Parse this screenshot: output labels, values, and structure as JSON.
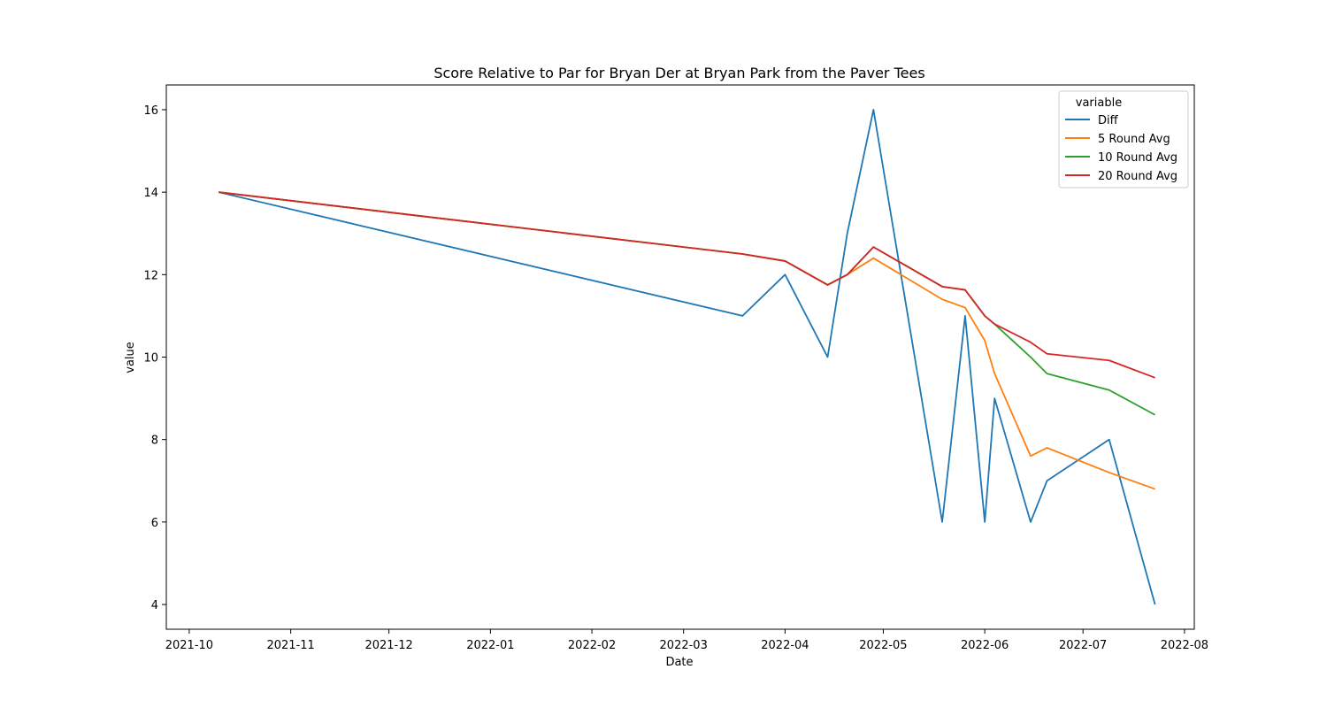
{
  "chart_data": {
    "type": "line",
    "title": "Score Relative to Par for Bryan Der at Bryan Park from the Paver Tees",
    "xlabel": "Date",
    "ylabel": "value",
    "x_axis_type": "date",
    "xlim": [
      "2021-09-24",
      "2022-08-04"
    ],
    "ylim": [
      3.4,
      16.6
    ],
    "x_ticks": [
      "2021-10",
      "2021-11",
      "2021-12",
      "2022-01",
      "2022-02",
      "2022-03",
      "2022-04",
      "2022-05",
      "2022-06",
      "2022-07",
      "2022-08"
    ],
    "y_ticks": [
      4,
      6,
      8,
      10,
      12,
      14,
      16
    ],
    "grid": false,
    "legend": {
      "title": "variable",
      "placement": "top-right"
    },
    "x": [
      "2021-10-10",
      "2022-03-19",
      "2022-04-01",
      "2022-04-14",
      "2022-04-20",
      "2022-04-28",
      "2022-05-19",
      "2022-05-26",
      "2022-06-01",
      "2022-06-04",
      "2022-06-15",
      "2022-06-20",
      "2022-07-09",
      "2022-07-23"
    ],
    "series": [
      {
        "name": "Diff",
        "color": "#1f77b4",
        "values": [
          14,
          11,
          12,
          10,
          13,
          16,
          6,
          11,
          6,
          9,
          6,
          7,
          8,
          4
        ]
      },
      {
        "name": "5 Round Avg",
        "color": "#ff7f0e",
        "values": [
          14,
          12.5,
          12.33,
          11.75,
          12.0,
          12.4,
          11.4,
          11.2,
          10.4,
          9.6,
          7.6,
          7.8,
          7.2,
          6.8
        ]
      },
      {
        "name": "10 Round Avg",
        "color": "#2ca02c",
        "values": [
          14,
          12.5,
          12.33,
          11.75,
          12.0,
          12.67,
          11.71,
          11.63,
          11.0,
          10.8,
          10.0,
          9.6,
          9.2,
          8.6
        ]
      },
      {
        "name": "20 Round Avg",
        "color": "#d62728",
        "values": [
          14,
          12.5,
          12.33,
          11.75,
          12.0,
          12.67,
          11.71,
          11.63,
          11.0,
          10.8,
          10.36,
          10.08,
          9.92,
          9.5
        ]
      }
    ]
  }
}
